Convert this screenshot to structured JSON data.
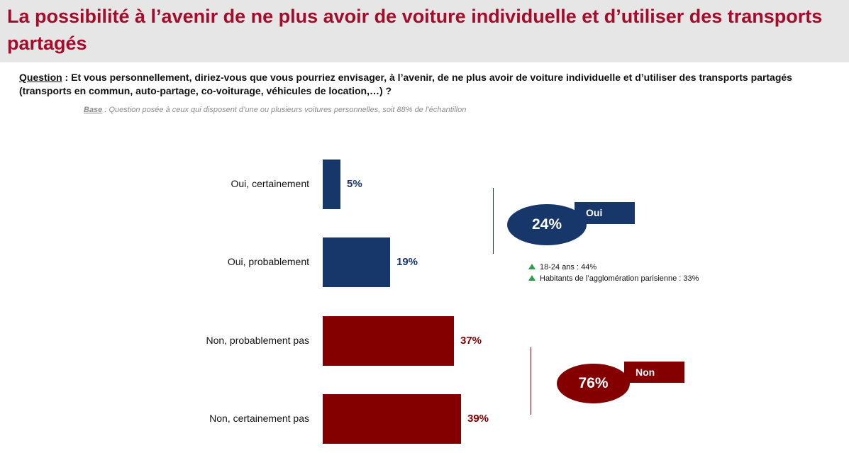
{
  "title": "La possibilité à l’avenir de ne plus avoir de voiture individuelle et d’utiliser des transports partagés",
  "question": {
    "label": "Question",
    "text": " :  Et vous personnellement, diriez-vous que vous pourriez envisager, à l’avenir, de ne plus avoir de voiture individuelle et d’utiliser des transports partagés (transports en commun, auto-partage, co-voiturage, véhicules de location,…) ?"
  },
  "base": {
    "label": "Base",
    "text": " : Question posée à ceux qui disposent d’une ou plusieurs voitures personnelles, soit 88% de l’échantillon"
  },
  "chart_data": {
    "type": "bar",
    "orientation": "horizontal",
    "categories": [
      "Oui, certainement",
      "Oui, probablement",
      "Non, probablement pas",
      "Non, certainement pas"
    ],
    "values": [
      5,
      19,
      37,
      39
    ],
    "value_labels": [
      "5%",
      "19%",
      "37%",
      "39%"
    ],
    "colors": [
      "#17376b",
      "#17376b",
      "#840000",
      "#840000"
    ],
    "unit": "%",
    "groups": [
      {
        "name": "Oui",
        "total": "24%",
        "color": "#17376b"
      },
      {
        "name": "Non",
        "total": "76%",
        "color": "#840000"
      }
    ]
  },
  "notes": [
    "18-24 ans : 44%",
    "Habitants de l’agglomération parisienne : 33%"
  ],
  "colors": {
    "title": "#a50b2a",
    "oui": "#17376b",
    "non": "#840000",
    "up_arrow": "#2e9e4e"
  }
}
